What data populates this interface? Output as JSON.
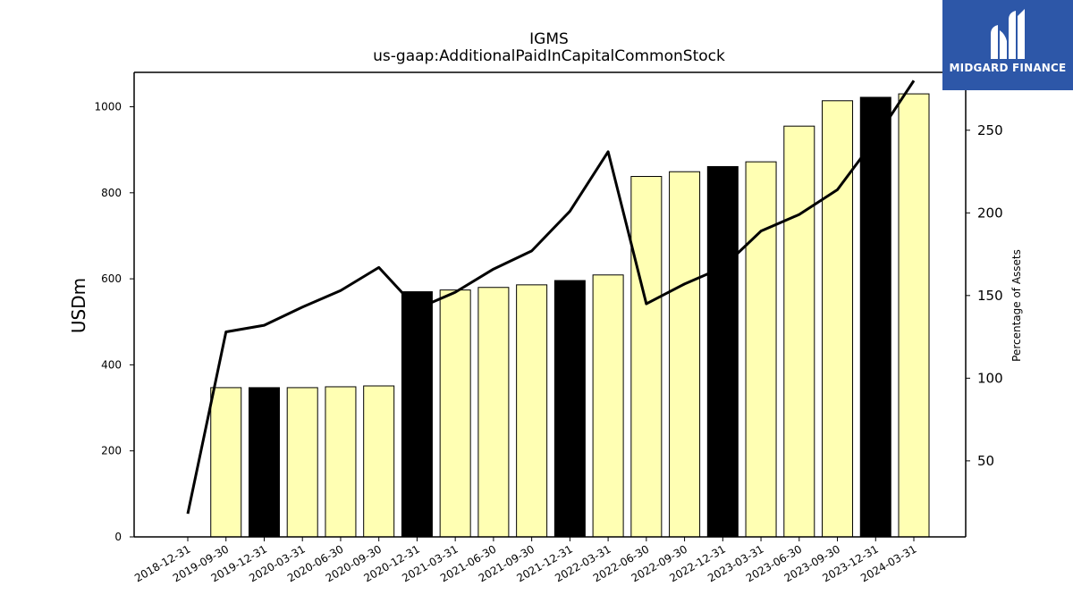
{
  "logo": {
    "name": "MIDGARD FINANCE",
    "color": "#2d57a8"
  },
  "chart_data": {
    "type": "bar",
    "title": "IGMS",
    "subtitle": "us-gaap:AdditionalPaidInCapitalCommonStock",
    "ylabel": "USDm",
    "ylabel_right": "Percentage of Assets",
    "categories": [
      "2018-12-31",
      "2019-09-30",
      "2019-12-31",
      "2020-03-31",
      "2020-06-30",
      "2020-09-30",
      "2020-12-31",
      "2021-03-31",
      "2021-06-30",
      "2021-09-30",
      "2021-12-31",
      "2022-03-31",
      "2022-06-30",
      "2022-09-30",
      "2022-12-31",
      "2023-03-31",
      "2023-06-30",
      "2023-09-30",
      "2023-12-31",
      "2024-03-31"
    ],
    "series": [
      {
        "kind": "bar",
        "axis": "left",
        "values": [
          null,
          347,
          347,
          347,
          349,
          351,
          570,
          574,
          580,
          586,
          596,
          609,
          838,
          849,
          861,
          872,
          955,
          1014,
          1022,
          1030
        ],
        "colors": [
          "#ffffb3",
          "#ffffb3",
          "#000000",
          "#ffffb3",
          "#ffffb3",
          "#ffffb3",
          "#000000",
          "#ffffb3",
          "#ffffb3",
          "#ffffb3",
          "#000000",
          "#ffffb3",
          "#ffffb3",
          "#ffffb3",
          "#000000",
          "#ffffb3",
          "#ffffb3",
          "#ffffb3",
          "#000000",
          "#ffffb3"
        ]
      },
      {
        "kind": "line",
        "axis": "right",
        "color": "#000000",
        "values": [
          18,
          128,
          132,
          143,
          153,
          167,
          142,
          152,
          166,
          177,
          201,
          237,
          145,
          157,
          167,
          189,
          199,
          214,
          245,
          280
        ]
      }
    ],
    "ylim": [
      0,
      1080
    ],
    "yticks": [
      0,
      200,
      400,
      600,
      800,
      1000
    ],
    "y2lim": [
      4,
      285
    ],
    "y2ticks": [
      50,
      100,
      150,
      200,
      250
    ],
    "grid": false,
    "legend": "none"
  }
}
